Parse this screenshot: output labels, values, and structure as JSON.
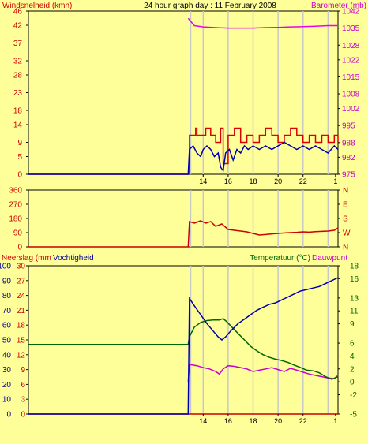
{
  "header": {
    "title": "24 hour graph day : 11 February 2008",
    "left_label": "Windsnelheid (kmh)",
    "right_label": "Barometer (mb)"
  },
  "colors": {
    "background": "#ffff99",
    "plot_background": "#ffff99",
    "grid": "#c8c8c8",
    "wind_text": "#cc0000",
    "baro_text": "#cc00cc",
    "gust": "#dd0000",
    "wind": "#0000aa",
    "baro": "#ee00ee",
    "direction": "#cc0000",
    "humidity": "#0000aa",
    "temperature": "#006600",
    "dewpoint": "#cc00cc",
    "rain": "#cc0000",
    "rain_text": "#cc0000",
    "hum_text": "#000099",
    "temp_text": "#006600",
    "dew_text": "#cc00cc"
  },
  "chart_data": [
    {
      "type": "line",
      "panel": "wind-barometer",
      "left_axis": {
        "label": "Windsnelheid (kmh)",
        "ticks": [
          0,
          5,
          9,
          14,
          18,
          23,
          28,
          32,
          37,
          42,
          46
        ],
        "ylim": [
          0,
          46
        ]
      },
      "right_axis": {
        "label": "Barometer (mb)",
        "ticks": [
          975,
          982,
          988,
          995,
          1002,
          1008,
          1015,
          1022,
          1028,
          1035,
          1042
        ],
        "ylim": [
          975,
          1042
        ]
      },
      "x_ticks": [
        "14",
        "16",
        "18",
        "20",
        "22",
        "1"
      ],
      "series": [
        {
          "name": "gust",
          "axis": "left",
          "x": [
            0,
            12.8,
            12.9,
            13.4,
            13.5,
            14.2,
            14.6,
            15.0,
            15.4,
            15.6,
            16.0,
            16.5,
            17.0,
            17.5,
            18.0,
            18.5,
            19.0,
            19.5,
            20.0,
            20.5,
            21.0,
            21.5,
            22.0,
            22.5,
            23.0,
            23.5,
            24.0,
            24.5,
            24.8
          ],
          "y": [
            0,
            0,
            11,
            13,
            11,
            13,
            11,
            9,
            13,
            3,
            11,
            13,
            9,
            11,
            9,
            11,
            13,
            11,
            9,
            11,
            13,
            11,
            9,
            11,
            9,
            11,
            9,
            11,
            9
          ]
        },
        {
          "name": "wind",
          "axis": "left",
          "x": [
            0,
            12.8,
            12.9,
            13.2,
            13.5,
            13.8,
            14.0,
            14.3,
            14.6,
            14.9,
            15.2,
            15.4,
            15.6,
            15.8,
            16.1,
            16.4,
            16.7,
            17.0,
            17.3,
            17.6,
            18.0,
            18.5,
            19.0,
            19.5,
            20.0,
            20.5,
            21.0,
            21.5,
            22.0,
            22.5,
            23.0,
            23.5,
            24.0,
            24.5,
            24.8
          ],
          "y": [
            0,
            0,
            7,
            8,
            6,
            5,
            7,
            8,
            7,
            5,
            6,
            2,
            1,
            6,
            7,
            4,
            7,
            6,
            8,
            7,
            8,
            7,
            8,
            7,
            8,
            9,
            8,
            7,
            8,
            7,
            8,
            7,
            6,
            8,
            7
          ]
        },
        {
          "name": "baro",
          "axis": "right",
          "x": [
            12.8,
            13.3,
            14.0,
            15.0,
            16.0,
            17.0,
            18.0,
            19.0,
            20.0,
            21.0,
            22.0,
            23.0,
            24.0,
            24.8
          ],
          "y": [
            1039,
            1036,
            1035.5,
            1035.2,
            1035,
            1035,
            1035,
            1035.2,
            1035.3,
            1035.5,
            1035.6,
            1035.8,
            1036,
            1036
          ]
        }
      ]
    },
    {
      "type": "line",
      "panel": "wind-direction",
      "left_axis": {
        "ticks": [
          0,
          90,
          180,
          270,
          360
        ],
        "ylim": [
          0,
          360
        ]
      },
      "right_axis": {
        "ticks": [
          "N",
          "W",
          "S",
          "E",
          "N"
        ]
      },
      "series": [
        {
          "name": "direction",
          "axis": "left",
          "x": [
            0,
            12.8,
            12.9,
            13.3,
            13.8,
            14.2,
            14.6,
            15.0,
            15.5,
            16.0,
            16.5,
            17.0,
            17.5,
            18.0,
            18.5,
            19.0,
            19.5,
            20.0,
            20.5,
            21.0,
            21.5,
            22.0,
            22.5,
            23.0,
            23.5,
            24.0,
            24.5,
            24.8
          ],
          "y": [
            0,
            0,
            160,
            150,
            165,
            150,
            160,
            130,
            145,
            110,
            105,
            100,
            95,
            85,
            75,
            78,
            82,
            85,
            88,
            90,
            92,
            95,
            93,
            96,
            98,
            100,
            105,
            120
          ]
        }
      ]
    },
    {
      "type": "line",
      "panel": "rain-humidity-temperature",
      "left_axis_rain": {
        "label": "Neerslag (mm",
        "ticks": [
          0,
          3,
          6,
          9,
          12,
          15,
          18,
          21,
          24,
          27,
          30
        ],
        "ylim": [
          0,
          30
        ]
      },
      "left_axis_humidity": {
        "label": "Vochtigheid",
        "ticks": [
          0,
          10,
          20,
          30,
          40,
          50,
          60,
          70,
          80,
          90,
          100
        ],
        "ylim": [
          0,
          100
        ]
      },
      "right_axis": {
        "label": "Temperatuur (°C)",
        "label2": "Dauwpunt",
        "ticks": [
          -5,
          -2,
          0,
          2,
          4,
          6,
          9,
          11,
          13,
          16,
          18
        ],
        "ylim": [
          -5,
          18
        ]
      },
      "series": [
        {
          "name": "rain",
          "axis": "rain",
          "x": [
            0,
            24.8
          ],
          "y": [
            0,
            0
          ]
        },
        {
          "name": "humidity",
          "axis": "humidity",
          "x": [
            0,
            12.8,
            12.9,
            13.3,
            13.8,
            14.3,
            14.8,
            15.2,
            15.5,
            15.8,
            16.2,
            16.8,
            17.3,
            17.8,
            18.3,
            18.8,
            19.3,
            19.8,
            20.3,
            20.8,
            21.3,
            21.8,
            22.3,
            22.8,
            23.3,
            23.8,
            24.3,
            24.8
          ],
          "y": [
            0,
            0,
            78,
            73,
            67,
            61,
            56,
            52,
            50,
            52,
            56,
            61,
            64,
            67,
            70,
            72,
            74,
            75,
            77,
            79,
            81,
            83,
            84,
            85,
            86,
            88,
            90,
            92
          ]
        },
        {
          "name": "temperature",
          "axis": "temperature",
          "x": [
            0,
            12.8,
            12.9,
            13.3,
            13.8,
            14.3,
            14.8,
            15.3,
            15.6,
            15.9,
            16.3,
            16.8,
            17.3,
            17.8,
            18.3,
            18.8,
            19.3,
            19.8,
            20.3,
            20.8,
            21.3,
            21.8,
            22.3,
            22.8,
            23.3,
            23.8,
            24.3,
            24.8
          ],
          "y": [
            5.8,
            5.8,
            7,
            8.5,
            9.2,
            9.5,
            9.6,
            9.6,
            9.8,
            9.3,
            8.5,
            7.5,
            6.5,
            5.5,
            4.8,
            4.2,
            3.8,
            3.5,
            3.3,
            3.0,
            2.6,
            2.2,
            1.8,
            1.7,
            1.4,
            0.8,
            0.4,
            0.8
          ]
        },
        {
          "name": "dewpoint",
          "axis": "temperature",
          "x": [
            12.8,
            12.9,
            13.5,
            14.0,
            14.5,
            15.0,
            15.3,
            15.6,
            16.0,
            16.5,
            17.0,
            17.5,
            18.0,
            18.5,
            19.0,
            19.5,
            20.0,
            20.5,
            21.0,
            21.5,
            22.0,
            22.5,
            23.0,
            23.5,
            24.0,
            24.5,
            24.8
          ],
          "y": [
            0,
            2.7,
            2.5,
            2.2,
            2.0,
            1.6,
            1.2,
            2.0,
            2.5,
            2.4,
            2.2,
            2.0,
            1.6,
            1.8,
            2.0,
            2.2,
            1.9,
            1.6,
            2.1,
            1.8,
            1.5,
            1.2,
            1.0,
            0.8,
            0.6,
            0.5,
            1.0
          ]
        }
      ]
    }
  ]
}
